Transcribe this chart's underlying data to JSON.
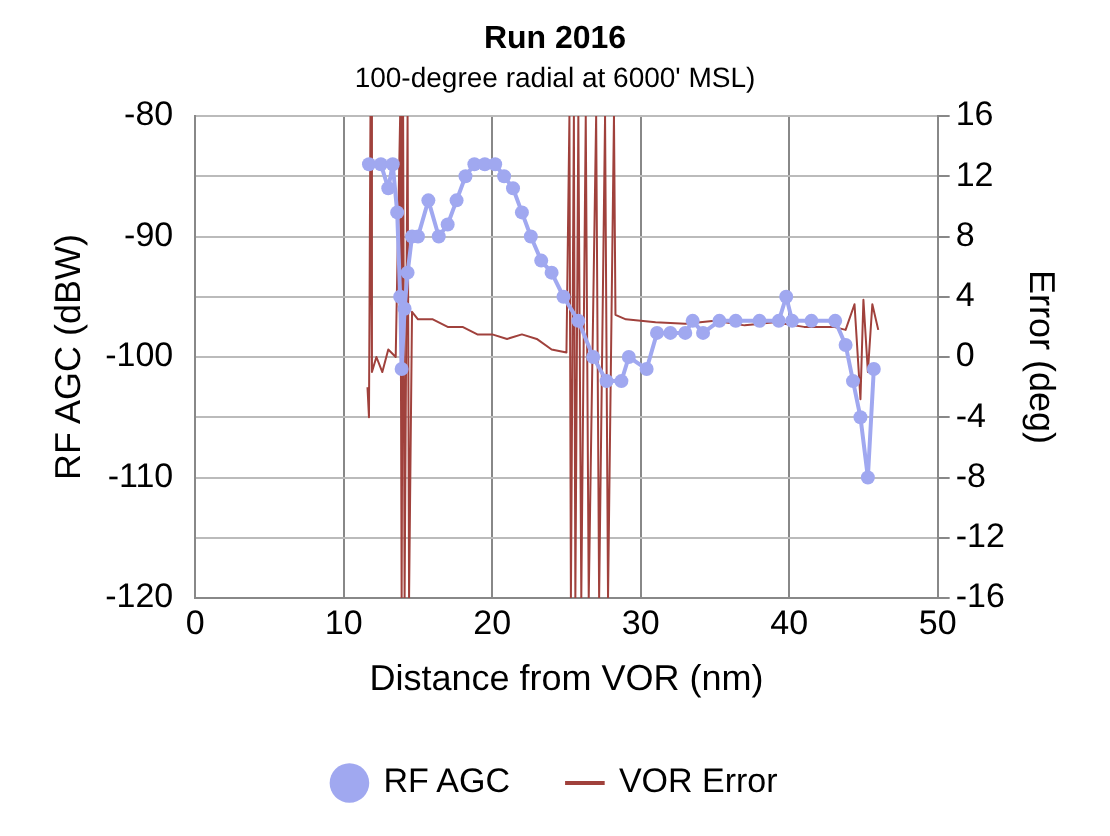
{
  "chart_data": {
    "type": "line",
    "title": "Run 2016",
    "subtitle": "100-degree radial at 6000' MSL)",
    "xlabel": "Distance from VOR (nm)",
    "ylabel": "RF AGC (dBW)",
    "y2label": "Error (deg)",
    "xlim": [
      0,
      50
    ],
    "xticks": [
      0,
      10,
      20,
      30,
      40,
      50
    ],
    "ylim": [
      -120,
      -80
    ],
    "yticks": [
      -120,
      -110,
      -100,
      -90,
      -80
    ],
    "y2lim": [
      -16,
      16
    ],
    "y2ticks": [
      -16,
      -12,
      -8,
      -4,
      0,
      4,
      8,
      12,
      16
    ],
    "grid": true,
    "legend": "bottom",
    "series": [
      {
        "name": "RF AGC",
        "color": "#a0a8f0",
        "type": "line",
        "marker": "circle",
        "x": [
          11.7,
          12.5,
          13.0,
          13.3,
          13.6,
          13.8,
          13.9,
          14.1,
          14.3,
          14.6,
          15.0,
          15.7,
          16.4,
          17.0,
          17.6,
          18.2,
          18.8,
          19.5,
          20.2,
          20.8,
          21.4,
          22.0,
          22.6,
          23.3,
          24.0,
          24.8,
          25.8,
          26.8,
          27.7,
          28.7,
          29.2,
          30.4,
          31.1,
          32.0,
          33.0,
          33.5,
          34.2,
          35.3,
          36.4,
          38.0,
          39.3,
          39.8,
          40.2,
          41.5,
          43.1,
          43.8,
          44.3,
          44.8,
          45.3,
          45.7
        ],
        "values": [
          -84,
          -84,
          -86,
          -84,
          -88,
          -95,
          -101,
          -96,
          -93,
          -90,
          -90,
          -87,
          -90,
          -89,
          -87,
          -85,
          -84,
          -84,
          -84,
          -85,
          -86,
          -88,
          -90,
          -92,
          -93,
          -95,
          -97,
          -100,
          -102,
          -102,
          -100,
          -101,
          -98,
          -98,
          -98,
          -97,
          -98,
          -97,
          -97,
          -97,
          -97,
          -95,
          -97,
          -97,
          -97,
          -99,
          -102,
          -105,
          -110,
          -101
        ]
      },
      {
        "name": "VOR Error",
        "color": "#a0413c",
        "type": "line",
        "marker": "none",
        "axis": "y2",
        "x": [
          11.6,
          11.7,
          11.8,
          11.9,
          12.2,
          12.6,
          13.0,
          13.5,
          13.8,
          13.9,
          14.0,
          14.1,
          14.3,
          14.4,
          14.6,
          15,
          16,
          17,
          18,
          19,
          20,
          21,
          22,
          23,
          24,
          25,
          25.2,
          25.3,
          25.5,
          25.6,
          25.8,
          26,
          26.3,
          26.5,
          27,
          27.2,
          27.6,
          27.8,
          28.2,
          28.3,
          29,
          31,
          33,
          35,
          37,
          39,
          41,
          43,
          43.8,
          44.4,
          44.8,
          45.0,
          45.3,
          45.6,
          46
        ],
        "values": [
          -2,
          -4,
          16,
          -1,
          0,
          -1,
          0.5,
          0,
          16,
          -16,
          16,
          -16,
          16,
          -16,
          3,
          2.5,
          2.5,
          2,
          2,
          1.5,
          1.5,
          1.2,
          1.5,
          1.2,
          0.5,
          0.3,
          16,
          -16,
          16,
          -16,
          16,
          -16,
          16,
          -16,
          16,
          -16,
          16,
          -16,
          16,
          2.8,
          2.5,
          2.3,
          2.2,
          2.4,
          2.1,
          2.3,
          2,
          2,
          1.8,
          3.5,
          -2.8,
          3.8,
          -1,
          3.5,
          1.8
        ]
      }
    ]
  }
}
